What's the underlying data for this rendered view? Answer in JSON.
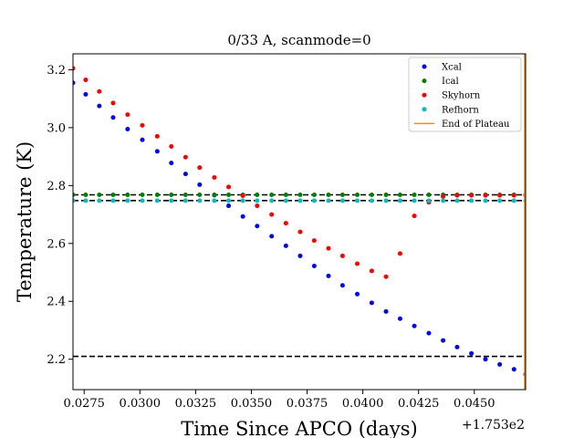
{
  "chart_data": {
    "type": "scatter",
    "title": "0/33 A, scanmode=0",
    "xlabel": "Time Since APCO (days)",
    "ylabel": "Temperature (K)",
    "x_offset_label": "+1.753e2",
    "xlim": [
      0.027,
      0.0473
    ],
    "ylim": [
      2.095,
      3.255
    ],
    "x_ticks": [
      0.0275,
      0.03,
      0.0325,
      0.035,
      0.0375,
      0.04,
      0.0425,
      0.045
    ],
    "x_tick_labels": [
      "0.0275",
      "0.0300",
      "0.0325",
      "0.0350",
      "0.0375",
      "0.0400",
      "0.0425",
      "0.0450"
    ],
    "y_ticks": [
      2.2,
      2.4,
      2.6,
      2.8,
      3.0,
      3.2
    ],
    "y_tick_labels": [
      "2.2",
      "2.4",
      "2.6",
      "2.8",
      "3.0",
      "3.2"
    ],
    "grid": false,
    "legend_position": "top-right",
    "series": [
      {
        "name": "Xcal",
        "color": "#0000ff",
        "marker": "dot",
        "x": [
          0.027,
          0.02757,
          0.02818,
          0.0288,
          0.02945,
          0.03011,
          0.03078,
          0.03141,
          0.03205,
          0.03268,
          0.03334,
          0.03398,
          0.03462,
          0.03526,
          0.03591,
          0.03655,
          0.03719,
          0.03782,
          0.03846,
          0.03909,
          0.03975,
          0.0404,
          0.04104,
          0.04167,
          0.04231,
          0.04296,
          0.0436,
          0.04423,
          0.04487,
          0.0455,
          0.04614,
          0.04678,
          0.0473
        ],
        "y": [
          3.155,
          3.115,
          3.075,
          3.035,
          2.995,
          2.958,
          2.918,
          2.878,
          2.84,
          2.803,
          2.767,
          2.73,
          2.693,
          2.66,
          2.625,
          2.592,
          2.557,
          2.522,
          2.488,
          2.455,
          2.425,
          2.395,
          2.365,
          2.34,
          2.315,
          2.29,
          2.265,
          2.242,
          2.22,
          2.2,
          2.182,
          2.165,
          2.148
        ]
      },
      {
        "name": "Ical",
        "color": "#008000",
        "marker": "dot",
        "x": [
          0.027,
          0.02757,
          0.02818,
          0.0288,
          0.02945,
          0.03011,
          0.03078,
          0.03141,
          0.03205,
          0.03268,
          0.03334,
          0.03398,
          0.03462,
          0.03526,
          0.03591,
          0.03655,
          0.03719,
          0.03782,
          0.03846,
          0.03909,
          0.03975,
          0.0404,
          0.04104,
          0.04167,
          0.04231,
          0.04296,
          0.0436,
          0.04423,
          0.04487,
          0.0455,
          0.04614,
          0.04678,
          0.0473
        ],
        "y": [
          2.768,
          2.768,
          2.768,
          2.768,
          2.768,
          2.768,
          2.768,
          2.768,
          2.768,
          2.768,
          2.768,
          2.768,
          2.768,
          2.768,
          2.768,
          2.768,
          2.768,
          2.768,
          2.768,
          2.768,
          2.768,
          2.768,
          2.768,
          2.768,
          2.768,
          2.768,
          2.768,
          2.768,
          2.768,
          2.768,
          2.768,
          2.768,
          2.768
        ]
      },
      {
        "name": "Skyhorn",
        "color": "#ff0000",
        "marker": "dot",
        "x": [
          0.027,
          0.02757,
          0.02818,
          0.0288,
          0.02945,
          0.03011,
          0.03078,
          0.03141,
          0.03205,
          0.03268,
          0.03334,
          0.03398,
          0.03462,
          0.03526,
          0.03591,
          0.03655,
          0.03719,
          0.03782,
          0.03846,
          0.03909,
          0.03975,
          0.0404,
          0.04104,
          0.04167,
          0.04231,
          0.04296,
          0.0436,
          0.04423,
          0.04487,
          0.0455,
          0.04614,
          0.04678,
          0.0473
        ],
        "y": [
          3.205,
          3.165,
          3.125,
          3.085,
          3.045,
          3.008,
          2.97,
          2.935,
          2.898,
          2.862,
          2.828,
          2.795,
          2.765,
          2.73,
          2.7,
          2.67,
          2.64,
          2.61,
          2.583,
          2.557,
          2.53,
          2.505,
          2.485,
          2.565,
          2.695,
          2.742,
          2.762,
          2.766,
          2.766,
          2.766,
          2.766,
          2.766,
          2.766
        ]
      },
      {
        "name": "Refhorn",
        "color": "#00bfbf",
        "marker": "dot",
        "x": [
          0.027,
          0.02757,
          0.02818,
          0.0288,
          0.02945,
          0.03011,
          0.03078,
          0.03141,
          0.03205,
          0.03268,
          0.03334,
          0.03398,
          0.03462,
          0.03526,
          0.03591,
          0.03655,
          0.03719,
          0.03782,
          0.03846,
          0.03909,
          0.03975,
          0.0404,
          0.04104,
          0.04167,
          0.04231,
          0.04296,
          0.0436,
          0.04423,
          0.04487,
          0.0455,
          0.04614,
          0.04678,
          0.0473
        ],
        "y": [
          2.748,
          2.748,
          2.748,
          2.748,
          2.748,
          2.748,
          2.748,
          2.748,
          2.748,
          2.748,
          2.748,
          2.748,
          2.748,
          2.748,
          2.748,
          2.748,
          2.748,
          2.748,
          2.748,
          2.748,
          2.748,
          2.748,
          2.748,
          2.748,
          2.748,
          2.748,
          2.748,
          2.748,
          2.748,
          2.748,
          2.748,
          2.748,
          2.748
        ]
      },
      {
        "name": "End of Plateau",
        "color": "#ff8c00",
        "marker": "line",
        "x_value": 0.0473
      }
    ],
    "hlines": [
      {
        "y": 2.768,
        "color": "#000000",
        "style": "dashed"
      },
      {
        "y": 2.748,
        "color": "#000000",
        "style": "dashed"
      },
      {
        "y": 2.21,
        "color": "#000000",
        "style": "dashed"
      }
    ]
  }
}
